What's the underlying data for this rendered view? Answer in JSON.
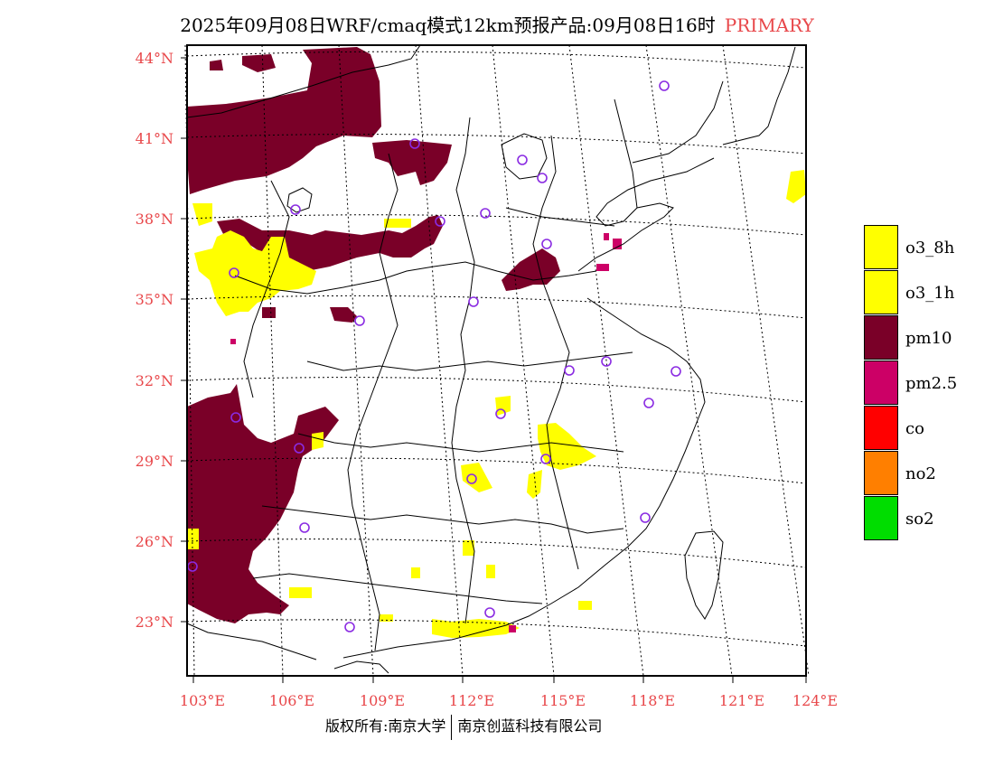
{
  "title": "2025年09月08日WRF/cmaq模式12km预报产品:09月08日16时",
  "mode_label": "PRIMARY",
  "colors": {
    "accent_red": "#e8474a",
    "pm10": "#7a0028",
    "o3": "#ffff00",
    "station": "#8a2be2"
  },
  "lat_labels": [
    "44°N",
    "41°N",
    "38°N",
    "35°N",
    "32°N",
    "29°N",
    "26°N",
    "23°N"
  ],
  "lon_labels": [
    "103°E",
    "106°E",
    "109°E",
    "112°E",
    "115°E",
    "118°E",
    "121°E",
    "124°E"
  ],
  "legend": [
    {
      "label": "o3_8h",
      "color": "#ffff00"
    },
    {
      "label": "o3_1h",
      "color": "#ffff00"
    },
    {
      "label": "pm10",
      "color": "#7a0028"
    },
    {
      "label": "pm2.5",
      "color": "#cc0066"
    },
    {
      "label": "co",
      "color": "#ff0000"
    },
    {
      "label": "no2",
      "color": "#ff7f00"
    },
    {
      "label": "so2",
      "color": "#00dd00"
    }
  ],
  "footer": {
    "copyright": "版权所有:南京大学",
    "company": "南京创蓝科技有限公司"
  }
}
